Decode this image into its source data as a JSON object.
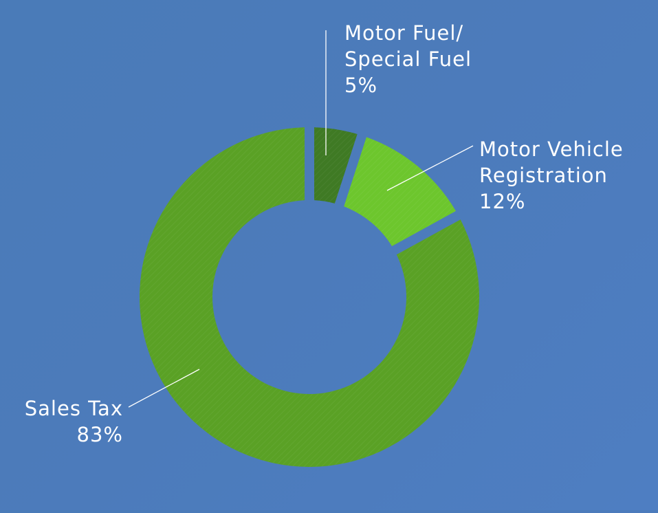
{
  "chart_data": {
    "type": "pie",
    "donut": true,
    "title": "",
    "slices": [
      {
        "label_lines": [
          "Motor Fuel/",
          "Special Fuel"
        ],
        "percent_label": "5%",
        "value": 5,
        "color": "#3f7a24"
      },
      {
        "label_lines": [
          "Motor Vehicle",
          "Registration"
        ],
        "percent_label": "12%",
        "value": 12,
        "color": "#6dc62d"
      },
      {
        "label_lines": [
          "Sales Tax"
        ],
        "percent_label": "83%",
        "value": 83,
        "color": "#5aa125"
      }
    ],
    "legend": "none",
    "background_color": "#4c7bbb",
    "label_color": "#ffffff"
  }
}
